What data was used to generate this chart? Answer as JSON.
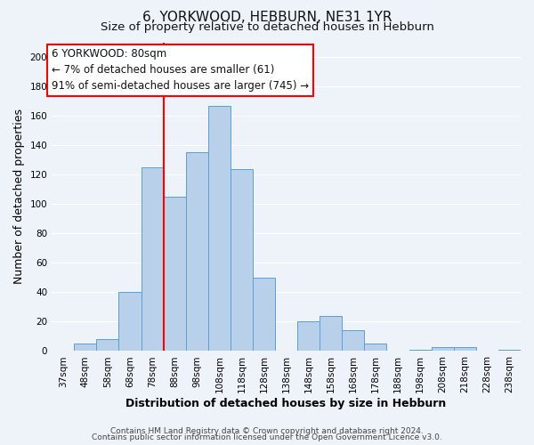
{
  "title": "6, YORKWOOD, HEBBURN, NE31 1YR",
  "subtitle": "Size of property relative to detached houses in Hebburn",
  "xlabel": "Distribution of detached houses by size in Hebburn",
  "ylabel": "Number of detached properties",
  "bar_labels": [
    "37sqm",
    "48sqm",
    "58sqm",
    "68sqm",
    "78sqm",
    "88sqm",
    "98sqm",
    "108sqm",
    "118sqm",
    "128sqm",
    "138sqm",
    "148sqm",
    "158sqm",
    "168sqm",
    "178sqm",
    "188sqm",
    "198sqm",
    "208sqm",
    "218sqm",
    "228sqm",
    "238sqm"
  ],
  "bar_values": [
    0,
    5,
    8,
    40,
    125,
    105,
    135,
    167,
    124,
    50,
    0,
    20,
    24,
    14,
    5,
    0,
    1,
    3,
    3,
    0,
    1
  ],
  "bar_color": "#b8d0ea",
  "bar_edge_color": "#5a9fd4",
  "ylim": [
    0,
    210
  ],
  "yticks": [
    0,
    20,
    40,
    60,
    80,
    100,
    120,
    140,
    160,
    180,
    200
  ],
  "red_line_x": 4.5,
  "ann_line1": "6 YORKWOOD: 80sqm",
  "ann_line2": "← 7% of detached houses are smaller (61)",
  "ann_line3": "91% of semi-detached houses are larger (745) →",
  "footer_line1": "Contains HM Land Registry data © Crown copyright and database right 2024.",
  "footer_line2": "Contains public sector information licensed under the Open Government Licence v3.0.",
  "background_color": "#eef2f9",
  "plot_bg_color": "#eef2f9",
  "grid_color": "#ffffff",
  "title_fontsize": 11,
  "subtitle_fontsize": 9.5,
  "axis_label_fontsize": 9,
  "tick_fontsize": 7.5,
  "footer_fontsize": 6.5,
  "ann_fontsize": 8.5
}
